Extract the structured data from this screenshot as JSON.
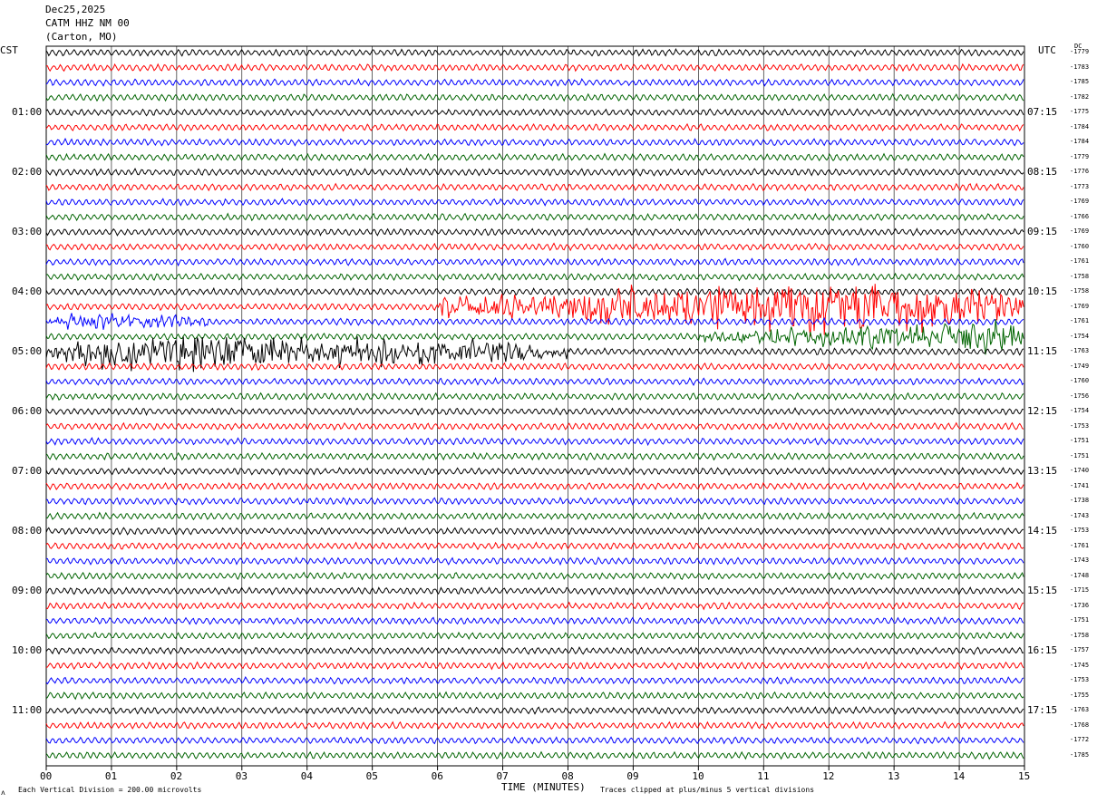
{
  "header": {
    "date": "Dec25,2025",
    "station": "CATM HHZ NM 00",
    "location": "(Carton, MO)"
  },
  "left_axis_title": "CST",
  "right_axis_title": "UTC",
  "dc_title": "DC",
  "footer": {
    "scale_note": "Each Vertical Division =  200.00 microvolts",
    "xlabel": "TIME (MINUTES)",
    "clip_note": "Traces clipped at plus/minus 5 vertical divisions",
    "mark": "ᴧ"
  },
  "colors": {
    "cycle": [
      "#000000",
      "#ff0000",
      "#0000ff",
      "#006400"
    ],
    "grid": "#000000",
    "frame": "#000000"
  },
  "chart_data": {
    "type": "line",
    "title": "",
    "xlabel": "TIME (MINUTES)",
    "ylabel": "",
    "xlim": [
      0,
      15
    ],
    "x_ticks": [
      "00",
      "01",
      "02",
      "03",
      "04",
      "05",
      "06",
      "07",
      "08",
      "09",
      "10",
      "11",
      "12",
      "13",
      "14",
      "15"
    ],
    "minutes_per_line": 15,
    "line_count": 48,
    "grid": true,
    "left_ticks_cst": [
      {
        "label": "01:00",
        "line": 4
      },
      {
        "label": "02:00",
        "line": 8
      },
      {
        "label": "03:00",
        "line": 12
      },
      {
        "label": "04:00",
        "line": 16
      },
      {
        "label": "05:00",
        "line": 20
      },
      {
        "label": "06:00",
        "line": 24
      },
      {
        "label": "07:00",
        "line": 28
      },
      {
        "label": "08:00",
        "line": 32
      },
      {
        "label": "09:00",
        "line": 36
      },
      {
        "label": "10:00",
        "line": 40
      },
      {
        "label": "11:00",
        "line": 44
      }
    ],
    "right_ticks_utc": [
      {
        "label": "07:15",
        "line": 4
      },
      {
        "label": "08:15",
        "line": 8
      },
      {
        "label": "09:15",
        "line": 12
      },
      {
        "label": "10:15",
        "line": 16
      },
      {
        "label": "11:15",
        "line": 20
      },
      {
        "label": "12:15",
        "line": 24
      },
      {
        "label": "13:15",
        "line": 28
      },
      {
        "label": "14:15",
        "line": 32
      },
      {
        "label": "15:15",
        "line": 36
      },
      {
        "label": "16:15",
        "line": 40
      },
      {
        "label": "17:15",
        "line": 44
      }
    ],
    "dc_offsets": [
      -1779,
      -1783,
      -1785,
      -1782,
      -1775,
      -1784,
      -1784,
      -1779,
      -1776,
      -1773,
      -1769,
      -1766,
      -1769,
      -1760,
      -1761,
      -1758,
      -1758,
      -1769,
      -1761,
      -1754,
      -1763,
      -1749,
      -1760,
      -1756,
      -1754,
      -1753,
      -1751,
      -1751,
      -1740,
      -1741,
      -1738,
      -1743,
      -1753,
      -1761,
      -1743,
      -1748,
      -1715,
      -1736,
      -1751,
      -1758,
      -1757,
      -1745,
      -1753,
      -1755,
      -1763,
      -1768,
      -1772,
      -1785
    ],
    "events": [
      {
        "line": 17,
        "start_min": 6.0,
        "end_min": 15,
        "peak_min": 12.3,
        "peak_amp": 2.4
      },
      {
        "line": 18,
        "start_min": 0,
        "end_min": 2.5,
        "peak_min": 0.5,
        "peak_amp": 0.7
      },
      {
        "line": 19,
        "start_min": 10.0,
        "end_min": 15,
        "peak_min": 14.7,
        "peak_amp": 1.3
      },
      {
        "line": 20,
        "start_min": 0,
        "end_min": 8.0,
        "peak_min": 1.0,
        "peak_amp": 1.5
      }
    ]
  }
}
